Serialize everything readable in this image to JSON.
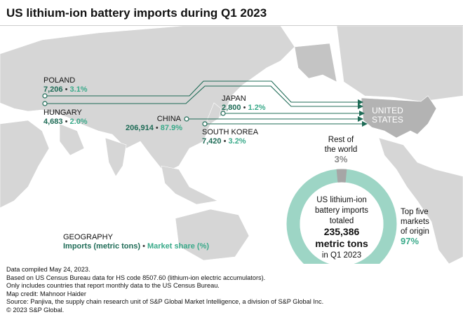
{
  "title": "US lithium-ion battery imports during Q1 2023",
  "colors": {
    "imports": "#1e6b56",
    "share": "#3aaa8a",
    "donut_top_five": "#9dd5c5",
    "donut_rest": "#a6a6a6",
    "land": "#d6d6d6",
    "us": "#b3b3b3"
  },
  "countries": [
    {
      "name": "POLAND",
      "imports": "7,206",
      "share": "3.1%"
    },
    {
      "name": "HUNGARY",
      "imports": "4,683",
      "share": "2.0%"
    },
    {
      "name": "CHINA",
      "imports": "206,914",
      "share": "87.9%"
    },
    {
      "name": "JAPAN",
      "imports": "2,800",
      "share": "1.2%"
    },
    {
      "name": "SOUTH KOREA",
      "imports": "7,420",
      "share": "3.2%"
    }
  ],
  "separator": "•",
  "destination": {
    "line1": "UNITED",
    "line2": "STATES"
  },
  "donut": {
    "rest_label_1": "Rest of",
    "rest_label_2": "the world",
    "rest_pct": "3%",
    "rest_value": 3,
    "top_label_1": "Top five",
    "top_label_2": "markets",
    "top_label_3": "of origin",
    "top_pct": "97%",
    "top_value": 97,
    "center_1": "US lithium-ion",
    "center_2": "battery imports",
    "center_3": "totaled",
    "center_4": "235,386",
    "center_5": "metric tons",
    "center_6": "in Q1 2023"
  },
  "legend": {
    "title": "GEOGRAPHY",
    "imports": "Imports (metric tons)",
    "share": "Market share (%)"
  },
  "footer": [
    "Data compiled May 24, 2023.",
    "Based on US Census Bureau data for HS code 8507.60 (lithium-ion electric accumulators).",
    "Only includes countries that report monthly data to the US Census Bureau.",
    "Map credit: Mahnoor Haider",
    "Source: Panjiva, the supply chain research unit of S&P Global Market Intelligence, a division of S&P Global Inc.",
    "© 2023 S&P Global."
  ]
}
